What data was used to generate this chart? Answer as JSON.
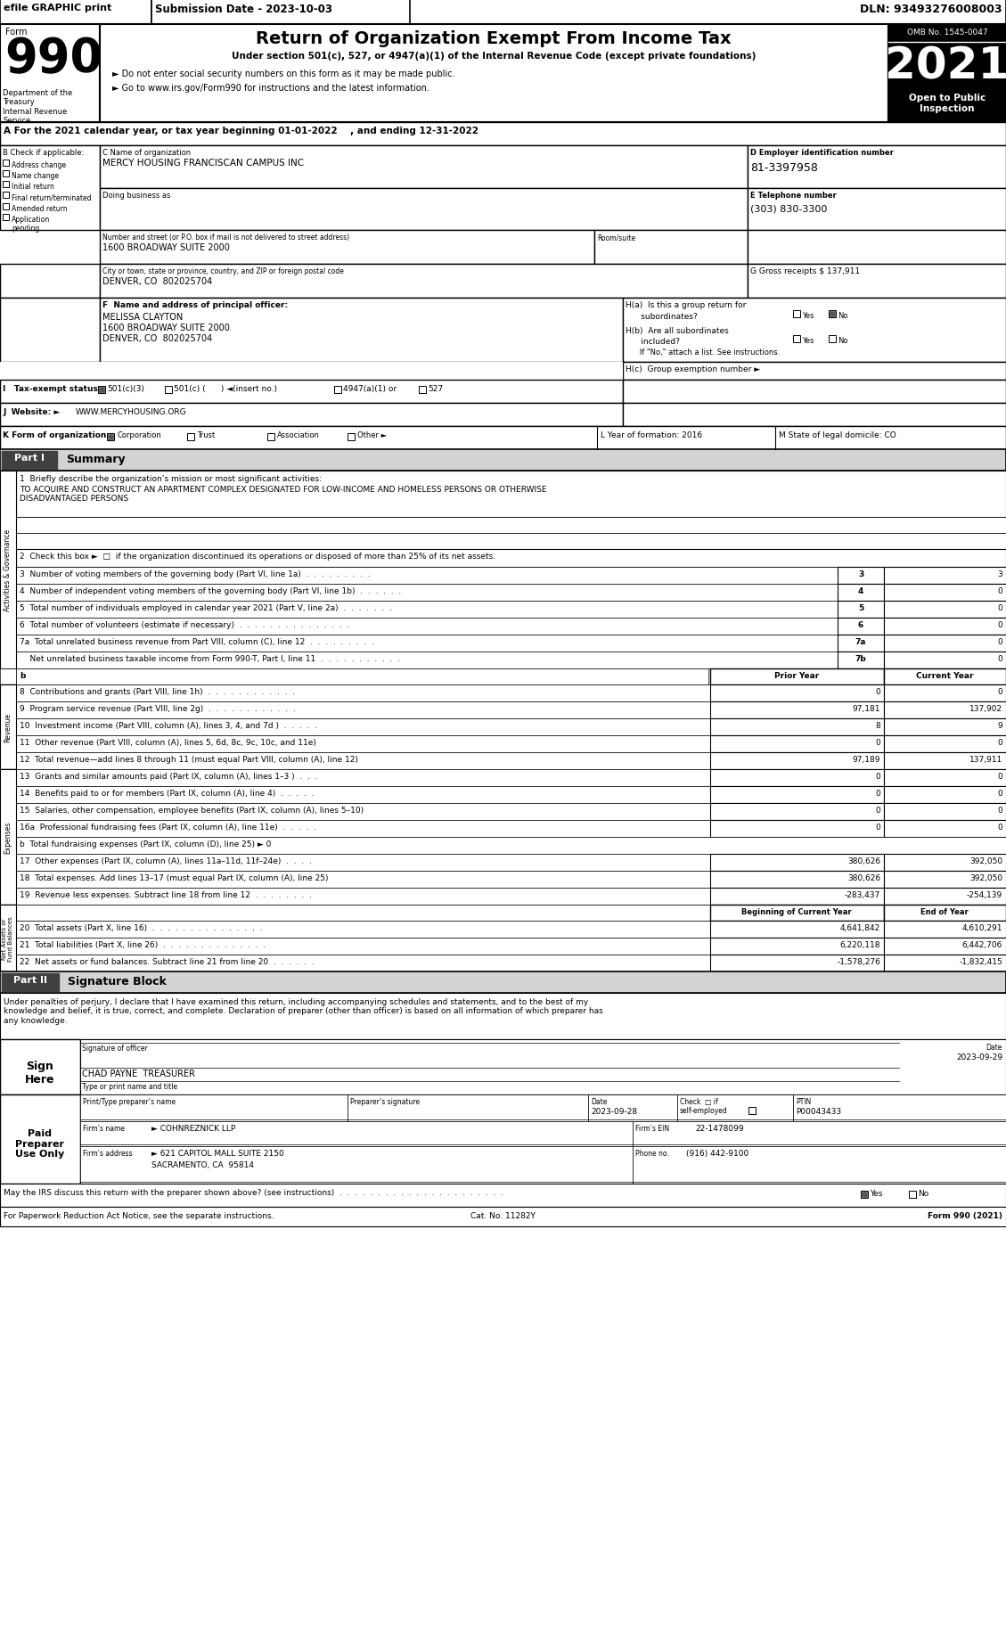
{
  "title_top": "efile GRAPHIC print",
  "submission_date": "Submission Date - 2023-10-03",
  "dln": "DLN: 93493276008003",
  "form_number": "990",
  "form_label": "Form",
  "main_title": "Return of Organization Exempt From Income Tax",
  "subtitle1": "Under section 501(c), 527, or 4947(a)(1) of the Internal Revenue Code (except private foundations)",
  "subtitle2": "► Do not enter social security numbers on this form as it may be made public.",
  "subtitle3": "► Go to www.irs.gov/Form990 for instructions and the latest information.",
  "year": "2021",
  "omb": "OMB No. 1545-0047",
  "open_public": "Open to Public\nInspection",
  "dept_treasury": "Department of the\nTreasury\nInternal Revenue\nService",
  "section_a": "A For the 2021 calendar year, or tax year beginning 01-01-2022    , and ending 12-31-2022",
  "section_b_label": "B Check if applicable:",
  "checkboxes_b": [
    "Address change",
    "Name change",
    "Initial return",
    "Final return/terminated",
    "Amended return",
    "Application\npending"
  ],
  "section_c_label": "C Name of organization",
  "org_name": "MERCY HOUSING FRANCISCAN CAMPUS INC",
  "dba_label": "Doing business as",
  "address_label": "Number and street (or P.O. box if mail is not delivered to street address)",
  "address_value": "1600 BROADWAY SUITE 2000",
  "room_label": "Room/suite",
  "city_label": "City or town, state or province, country, and ZIP or foreign postal code",
  "city_value": "DENVER, CO  802025704",
  "section_d_label": "D Employer identification number",
  "ein": "81-3397958",
  "section_e_label": "E Telephone number",
  "phone": "(303) 830-3300",
  "section_g_label": "G Gross receipts $ ",
  "gross_receipts": "137,911",
  "section_f_label": "F  Name and address of principal officer:",
  "officer_name": "MELISSA CLAYTON",
  "officer_addr1": "1600 BROADWAY SUITE 2000",
  "officer_addr2": "DENVER, CO  802025704",
  "ha_text1": "H(a)  Is this a group return for",
  "ha_text2": "subordinates?",
  "hb_text1": "H(b)  Are all subordinates",
  "hb_text2": "included?",
  "hb_note": "If \"No,\" attach a list. See instructions.",
  "hc_label": "H(c)  Group exemption number ►",
  "tax_exempt_label": "I   Tax-exempt status:",
  "tax_501c3": "501(c)(3)",
  "tax_501c": "501(c) (      ) ◄(insert no.)",
  "tax_4947": "4947(a)(1) or",
  "tax_527": "527",
  "website_label": "J  Website: ►",
  "website": "WWW.MERCYHOUSING.ORG",
  "k_label": "K Form of organization:",
  "k_options": [
    "Corporation",
    "Trust",
    "Association",
    "Other ►"
  ],
  "l_label": "L Year of formation: 2016",
  "m_label": "M State of legal domicile: CO",
  "part1_label": "Part I",
  "part1_title": "Summary",
  "line1_label": "1  Briefly describe the organization’s mission or most significant activities:",
  "line1_text": "TO ACQUIRE AND CONSTRUCT AN APARTMENT COMPLEX DESIGNATED FOR LOW-INCOME AND HOMELESS PERSONS OR OTHERWISE\nDISADVANTAGED PERSONS",
  "line2_text": "2  Check this box ►  □  if the organization discontinued its operations or disposed of more than 25% of its net assets.",
  "line3_text": "3  Number of voting members of the governing body (Part VI, line 1a)  .  .  .  .  .  .  .  .  .",
  "line3_num": "3",
  "line3_val": "3",
  "line4_text": "4  Number of independent voting members of the governing body (Part VI, line 1b)  .  .  .  .  .  .",
  "line4_num": "4",
  "line4_val": "0",
  "line5_text": "5  Total number of individuals employed in calendar year 2021 (Part V, line 2a)  .  .  .  .  .  .  .",
  "line5_num": "5",
  "line5_val": "0",
  "line6_text": "6  Total number of volunteers (estimate if necessary)  .  .  .  .  .  .  .  .  .  .  .  .  .  .  .",
  "line6_num": "6",
  "line6_val": "0",
  "line7a_text": "7a  Total unrelated business revenue from Part VIII, column (C), line 12  .  .  .  .  .  .  .  .  .",
  "line7a_num": "7a",
  "line7a_val": "0",
  "line7b_text": "    Net unrelated business taxable income from Form 990-T, Part I, line 11  .  .  .  .  .  .  .  .  .  .  .",
  "line7b_num": "7b",
  "line7b_val": "0",
  "col_prior": "Prior Year",
  "col_current": "Current Year",
  "line8_text": "8  Contributions and grants (Part VIII, line 1h)  .  .  .  .  .  .  .  .  .  .  .  .",
  "line8_prior": "0",
  "line8_current": "0",
  "line9_text": "9  Program service revenue (Part VIII, line 2g)  .  .  .  .  .  .  .  .  .  .  .  .",
  "line9_prior": "97,181",
  "line9_current": "137,902",
  "line10_text": "10  Investment income (Part VIII, column (A), lines 3, 4, and 7d )  .  .  .  .  .",
  "line10_prior": "8",
  "line10_current": "9",
  "line11_text": "11  Other revenue (Part VIII, column (A), lines 5, 6d, 8c, 9c, 10c, and 11e)",
  "line11_prior": "0",
  "line11_current": "0",
  "line12_text": "12  Total revenue—add lines 8 through 11 (must equal Part VIII, column (A), line 12)",
  "line12_prior": "97,189",
  "line12_current": "137,911",
  "line13_text": "13  Grants and similar amounts paid (Part IX, column (A), lines 1–3 )  .  .  .",
  "line13_prior": "0",
  "line13_current": "0",
  "line14_text": "14  Benefits paid to or for members (Part IX, column (A), line 4)  .  .  .  .  .",
  "line14_prior": "0",
  "line14_current": "0",
  "line15_text": "15  Salaries, other compensation, employee benefits (Part IX, column (A), lines 5–10)",
  "line15_prior": "0",
  "line15_current": "0",
  "line16a_text": "16a  Professional fundraising fees (Part IX, column (A), line 11e)  .  .  .  .  .",
  "line16a_prior": "0",
  "line16a_current": "0",
  "line16b_text": "b  Total fundraising expenses (Part IX, column (D), line 25) ► 0",
  "line17_text": "17  Other expenses (Part IX, column (A), lines 11a–11d, 11f–24e)  .  .  .  .",
  "line17_prior": "380,626",
  "line17_current": "392,050",
  "line18_text": "18  Total expenses. Add lines 13–17 (must equal Part IX, column (A), line 25)",
  "line18_prior": "380,626",
  "line18_current": "392,050",
  "line19_text": "19  Revenue less expenses. Subtract line 18 from line 12  .  .  .  .  .  .  .  .",
  "line19_prior": "-283,437",
  "line19_current": "-254,139",
  "col_begin": "Beginning of Current Year",
  "col_end": "End of Year",
  "line20_text": "20  Total assets (Part X, line 16)  .  .  .  .  .  .  .  .  .  .  .  .  .  .  .",
  "line20_begin": "4,641,842",
  "line20_end": "4,610,291",
  "line21_text": "21  Total liabilities (Part X, line 26)  .  .  .  .  .  .  .  .  .  .  .  .  .  .",
  "line21_begin": "6,220,118",
  "line21_end": "6,442,706",
  "line22_text": "22  Net assets or fund balances. Subtract line 21 from line 20  .  .  .  .  .  .",
  "line22_begin": "-1,578,276",
  "line22_end": "-1,832,415",
  "part2_label": "Part II",
  "part2_title": "Signature Block",
  "sig_declaration": "Under penalties of perjury, I declare that I have examined this return, including accompanying schedules and statements, and to the best of my\nknowledge and belief, it is true, correct, and complete. Declaration of preparer (other than officer) is based on all information of which preparer has\nany knowledge.",
  "sign_here": "Sign\nHere",
  "sig_date_label": "Date",
  "sig_date": "2023-09-29",
  "sig_officer_label": "Signature of officer",
  "sig_officer": "CHAD PAYNE  TREASURER",
  "sig_type_label": "Type or print name and title",
  "preparer_name_label": "Print/Type preparer’s name",
  "preparer_sig_label": "Preparer’s signature",
  "preparer_date_label": "Date",
  "preparer_check_label": "Check  □ if\nself-employed",
  "preparer_ptin_label": "PTIN",
  "preparer_date": "2023-09-28",
  "preparer_ptin": "P00043433",
  "paid_preparer": "Paid\nPreparer\nUse Only",
  "firm_name_label": "Firm’s name",
  "firm_name": "► COHNREZNICK LLP",
  "firm_ein_label": "Firm’s EIN",
  "firm_ein": "22-1478099",
  "firm_addr_label": "Firm’s address",
  "firm_addr": "► 621 CAPITOL MALL SUITE 2150",
  "firm_city": "SACRAMENTO, CA  95814",
  "firm_phone_label": "Phone no.",
  "firm_phone": "(916) 442-9100",
  "discuss_label": "May the IRS discuss this return with the preparer shown above? (see instructions)  .  .  .  .  .  .  .  .  .  .  .  .  .  .  .  .  .  .  .  .  .  .",
  "discuss_yes": "Yes",
  "discuss_no": "No",
  "paperwork_text": "For Paperwork Reduction Act Notice, see the separate instructions.",
  "cat_no": "Cat. No. 11282Y",
  "form_footer": "Form 990 (2021)"
}
